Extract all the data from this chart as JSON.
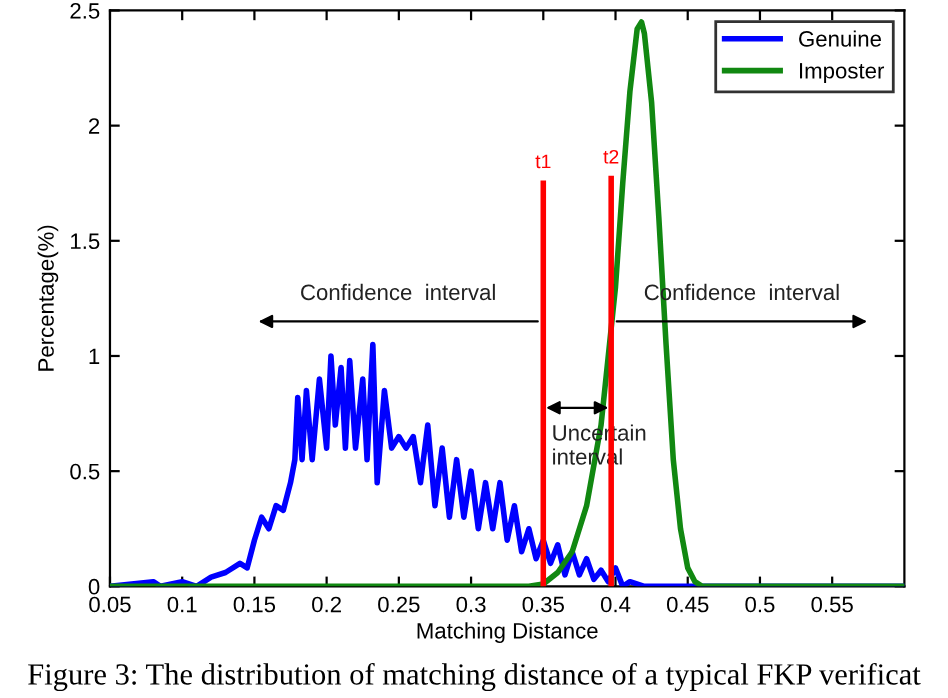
{
  "chart_data": {
    "type": "line",
    "xlabel": "Matching Distance",
    "ylabel": "Percentage(%)",
    "xlim": [
      0.05,
      0.6
    ],
    "xticks": [
      0.05,
      0.1,
      0.15,
      0.2,
      0.25,
      0.3,
      0.35,
      0.4,
      0.45,
      0.5,
      0.55
    ],
    "ylim": [
      0,
      2.5
    ],
    "yticks": [
      0,
      0.5,
      1,
      1.5,
      2,
      2.5
    ],
    "grid": false,
    "legend": "top right",
    "line_style": "solid",
    "marker": "none",
    "series": [
      {
        "name": "Genuine",
        "color": "#0000ff",
        "x": [
          0.05,
          0.08,
          0.085,
          0.1,
          0.11,
          0.12,
          0.13,
          0.14,
          0.145,
          0.15,
          0.155,
          0.16,
          0.165,
          0.17,
          0.175,
          0.178,
          0.18,
          0.183,
          0.186,
          0.19,
          0.195,
          0.2,
          0.203,
          0.206,
          0.21,
          0.213,
          0.216,
          0.22,
          0.225,
          0.228,
          0.232,
          0.235,
          0.24,
          0.245,
          0.25,
          0.255,
          0.26,
          0.265,
          0.27,
          0.275,
          0.28,
          0.285,
          0.29,
          0.295,
          0.3,
          0.305,
          0.31,
          0.315,
          0.32,
          0.325,
          0.33,
          0.335,
          0.34,
          0.345,
          0.35,
          0.355,
          0.36,
          0.365,
          0.37,
          0.375,
          0.38,
          0.385,
          0.39,
          0.395,
          0.4,
          0.405,
          0.41,
          0.42,
          0.6
        ],
        "values": [
          0,
          0.02,
          0,
          0.02,
          0,
          0.04,
          0.06,
          0.1,
          0.08,
          0.2,
          0.3,
          0.25,
          0.35,
          0.33,
          0.45,
          0.55,
          0.82,
          0.55,
          0.85,
          0.55,
          0.9,
          0.6,
          1.0,
          0.7,
          0.95,
          0.6,
          0.98,
          0.6,
          0.9,
          0.55,
          1.05,
          0.45,
          0.85,
          0.6,
          0.65,
          0.6,
          0.65,
          0.45,
          0.7,
          0.35,
          0.6,
          0.3,
          0.55,
          0.3,
          0.5,
          0.25,
          0.45,
          0.25,
          0.45,
          0.2,
          0.35,
          0.15,
          0.25,
          0.12,
          0.2,
          0.1,
          0.18,
          0.05,
          0.15,
          0.05,
          0.12,
          0.03,
          0.07,
          0.02,
          0.08,
          0,
          0.02,
          0,
          0
        ]
      },
      {
        "name": "Imposter",
        "color": "#118811",
        "x": [
          0.05,
          0.34,
          0.35,
          0.36,
          0.37,
          0.38,
          0.39,
          0.4,
          0.405,
          0.41,
          0.415,
          0.418,
          0.42,
          0.425,
          0.43,
          0.435,
          0.44,
          0.445,
          0.45,
          0.455,
          0.46,
          0.6
        ],
        "values": [
          0,
          0,
          0.01,
          0.06,
          0.15,
          0.35,
          0.7,
          1.3,
          1.75,
          2.15,
          2.42,
          2.45,
          2.4,
          2.1,
          1.6,
          1.05,
          0.55,
          0.25,
          0.08,
          0.02,
          0,
          0
        ]
      },
      {
        "color": "#ff0000",
        "x": [
          0.35,
          0.35
        ],
        "values": [
          0,
          1.75
        ]
      },
      {
        "color": "#ff0000",
        "x": [
          0.397,
          0.397
        ],
        "values": [
          0,
          1.77
        ]
      }
    ],
    "annotations": [
      {
        "text": "t1",
        "x": 0.35,
        "y": 1.75
      },
      {
        "text": "t2",
        "x": 0.397,
        "y": 1.77
      },
      "Confidence  interval",
      "Confidence  interval",
      "Uncertain\ninterval",
      "Figure 3: The distribution of matching distance of a typical FKP verificat"
    ]
  }
}
